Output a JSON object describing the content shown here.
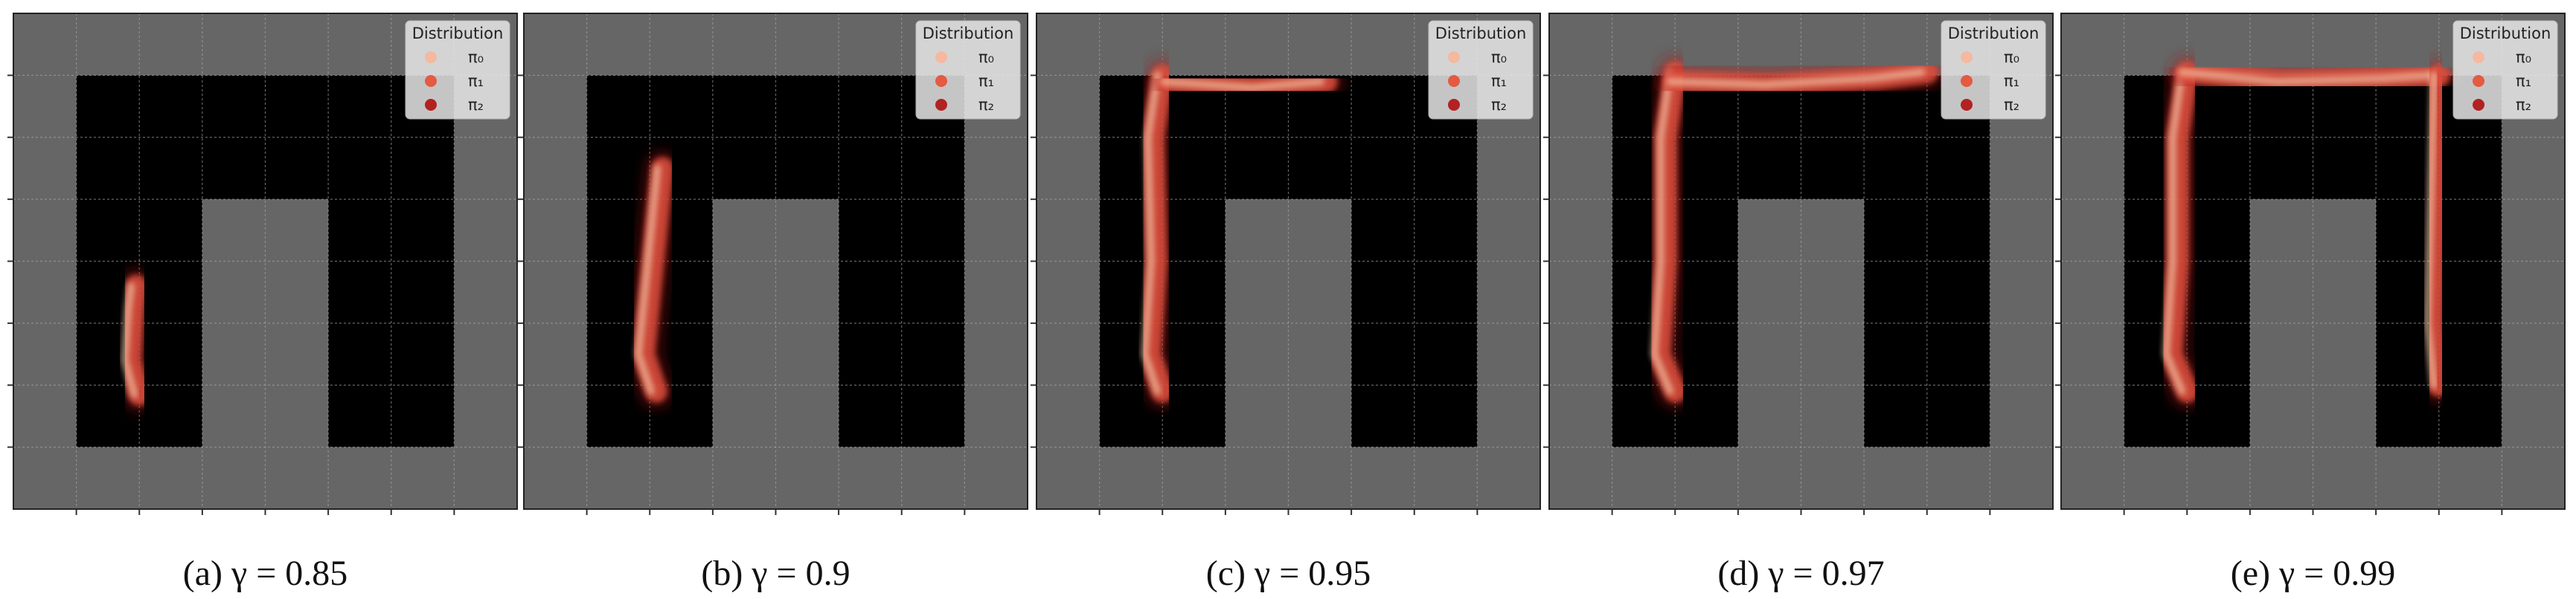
{
  "legend": {
    "title": "Distribution",
    "items": [
      "π₀",
      "π₁",
      "π₂"
    ]
  },
  "panels": [
    {
      "caption": "(a) γ = 0.85"
    },
    {
      "caption": "(b) γ = 0.9"
    },
    {
      "caption": "(c) γ = 0.95"
    },
    {
      "caption": "(d) γ = 0.97"
    },
    {
      "caption": "(e) γ = 0.99"
    }
  ]
}
